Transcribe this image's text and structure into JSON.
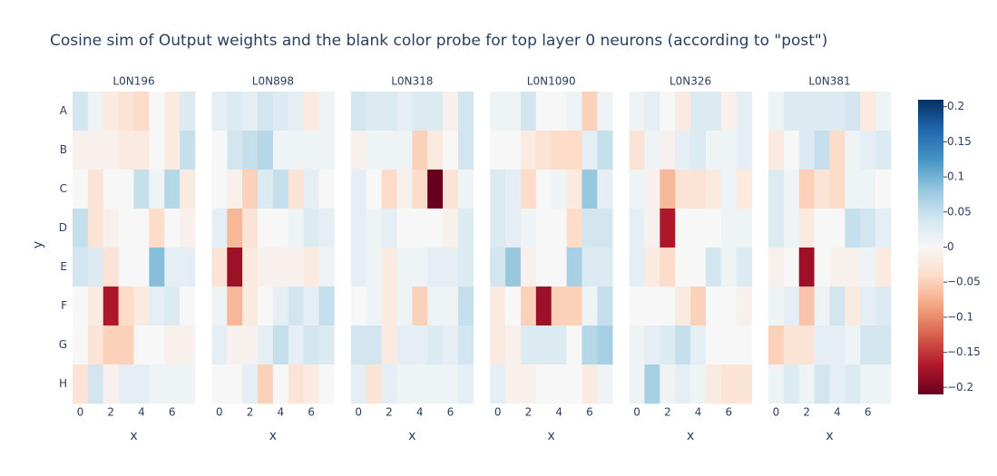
{
  "chart_data": {
    "type": "heatmap",
    "title": "Cosine sim of Output weights and the blank color probe for top layer 0 neurons (according to \"post\")",
    "xlabel": "x",
    "ylabel": "y",
    "x": [
      0,
      1,
      2,
      3,
      4,
      5,
      6,
      7
    ],
    "y": [
      "A",
      "B",
      "C",
      "D",
      "E",
      "F",
      "G",
      "H"
    ],
    "xlim": [
      -0.5,
      7.5
    ],
    "xticks": [
      0,
      2,
      4,
      6
    ],
    "zlim": [
      -0.21,
      0.21
    ],
    "colorscale": [
      "rgb(103,0,31)",
      "rgb(178,24,43)",
      "rgb(214,96,77)",
      "rgb(244,165,130)",
      "rgb(253,219,199)",
      "rgb(247,247,247)",
      "rgb(209,229,240)",
      "rgb(146,197,222)",
      "rgb(67,147,195)",
      "rgb(33,102,172)",
      "rgb(5,48,97)"
    ],
    "colorbar_ticks": [
      {
        "value": -0.2,
        "label": "−0.2"
      },
      {
        "value": -0.15,
        "label": "−0.15"
      },
      {
        "value": -0.1,
        "label": "−0.1"
      },
      {
        "value": -0.05,
        "label": "−0.05"
      },
      0,
      0.05,
      0.1,
      0.15,
      0.2
    ],
    "subplots": [
      {
        "title": "L0N196",
        "z": [
          [
            0.04,
            0.01,
            -0.02,
            -0.03,
            -0.04,
            0,
            -0.02,
            0.03
          ],
          [
            -0.01,
            -0.01,
            -0.01,
            -0.02,
            -0.02,
            0,
            -0.02,
            0.05
          ],
          [
            0,
            -0.03,
            0,
            0,
            0.05,
            0.01,
            0.06,
            -0.02
          ],
          [
            0.05,
            -0.03,
            -0.01,
            0,
            0,
            -0.04,
            0,
            -0.01
          ],
          [
            0.04,
            0.03,
            -0.03,
            0,
            0,
            0.09,
            0.02,
            0.02
          ],
          [
            0,
            -0.02,
            -0.17,
            -0.04,
            -0.02,
            0.02,
            0.03,
            0
          ],
          [
            0,
            -0.03,
            -0.05,
            -0.05,
            0,
            0,
            -0.01,
            -0.01
          ],
          [
            -0.03,
            0.04,
            -0.01,
            0.02,
            0.02,
            0.01,
            0.01,
            0.01
          ]
        ]
      },
      {
        "title": "L0N898",
        "z": [
          [
            0.02,
            0.03,
            0.02,
            0.04,
            0.03,
            0.02,
            -0.02,
            0.01
          ],
          [
            0,
            0.04,
            0.05,
            0.06,
            0.01,
            0.01,
            0.01,
            0.01
          ],
          [
            0,
            -0.01,
            -0.05,
            0.03,
            0.05,
            -0.03,
            0.02,
            0
          ],
          [
            0.02,
            -0.07,
            -0.03,
            0,
            0,
            0.01,
            0.03,
            0.02
          ],
          [
            -0.03,
            -0.18,
            -0.02,
            -0.01,
            -0.01,
            -0.01,
            -0.02,
            0.01
          ],
          [
            0.01,
            -0.07,
            -0.02,
            0,
            0.02,
            0.04,
            0.02,
            0.05
          ],
          [
            0.02,
            -0.01,
            -0.01,
            0.02,
            0.05,
            0.02,
            0.04,
            0.03
          ],
          [
            0,
            0,
            0.02,
            -0.05,
            0,
            -0.03,
            -0.02,
            0
          ]
        ]
      },
      {
        "title": "L0N318",
        "z": [
          [
            0.04,
            0.03,
            0.03,
            0.02,
            0.03,
            0.03,
            -0.01,
            0.04
          ],
          [
            -0.01,
            0.01,
            0.01,
            0.01,
            -0.05,
            -0.02,
            0,
            0.04
          ],
          [
            0.02,
            0,
            -0.04,
            -0.01,
            -0.04,
            -0.21,
            -0.03,
            0.01
          ],
          [
            0.02,
            0.01,
            0.02,
            0,
            0,
            0,
            -0.01,
            0.03
          ],
          [
            0.02,
            0.01,
            -0.02,
            0.01,
            0.01,
            0.02,
            0.02,
            0.03
          ],
          [
            0,
            0.01,
            -0.02,
            0.01,
            -0.05,
            0.01,
            0.01,
            0.05
          ],
          [
            0.04,
            0.04,
            -0.02,
            0.02,
            0.02,
            0.03,
            0.02,
            0.04
          ],
          [
            0.02,
            -0.03,
            0.02,
            0.01,
            0.01,
            0.01,
            0.01,
            0.02
          ]
        ]
      },
      {
        "title": "L0N1090",
        "z": [
          [
            0.01,
            0.01,
            0.04,
            0,
            0,
            0.01,
            -0.05,
            0.01
          ],
          [
            0,
            0,
            -0.02,
            -0.03,
            -0.04,
            -0.04,
            0.02,
            0.05
          ],
          [
            0.03,
            0.02,
            -0.04,
            0,
            0.01,
            -0.02,
            0.08,
            0.02
          ],
          [
            0.03,
            0.02,
            0.01,
            0,
            0,
            -0.04,
            0.04,
            0.04
          ],
          [
            0.04,
            0.08,
            -0.01,
            0,
            0,
            0.07,
            0.03,
            0.03
          ],
          [
            -0.02,
            0,
            -0.05,
            -0.18,
            -0.05,
            -0.05,
            0.01,
            0.05
          ],
          [
            -0.02,
            -0.01,
            0.03,
            0.03,
            0.03,
            0,
            0.06,
            0.07
          ],
          [
            0.02,
            -0.01,
            -0.01,
            0,
            0,
            0,
            -0.02,
            0.01
          ]
        ]
      },
      {
        "title": "L0N326",
        "z": [
          [
            0.01,
            0.02,
            0,
            -0.02,
            0.03,
            0.03,
            -0.01,
            0.02
          ],
          [
            -0.03,
            0.01,
            -0.01,
            0.02,
            0.03,
            0.01,
            0.01,
            0.02
          ],
          [
            0.01,
            -0.01,
            -0.07,
            -0.03,
            -0.03,
            -0.02,
            0.01,
            -0.02
          ],
          [
            0.02,
            -0.01,
            -0.17,
            0,
            0,
            0,
            0.01,
            0.01
          ],
          [
            0.02,
            -0.02,
            -0.04,
            0,
            0,
            0.04,
            0.01,
            0.03
          ],
          [
            0,
            0,
            0,
            -0.02,
            -0.05,
            0,
            0,
            -0.01
          ],
          [
            0.01,
            0.02,
            0.03,
            0.05,
            0.02,
            0,
            0,
            0
          ],
          [
            0.01,
            0.07,
            0.01,
            0.02,
            0.01,
            -0.02,
            -0.03,
            -0.03
          ]
        ]
      },
      {
        "title": "L0N381",
        "z": [
          [
            0.01,
            0.03,
            0.03,
            0.03,
            0.03,
            0.04,
            -0.02,
            0.01
          ],
          [
            -0.02,
            0,
            0.03,
            0.05,
            -0.04,
            0.01,
            0.02,
            0.03
          ],
          [
            0.03,
            0.01,
            -0.05,
            -0.03,
            -0.04,
            0.01,
            0.01,
            0
          ],
          [
            0.03,
            0.01,
            -0.02,
            0,
            0,
            0.05,
            0.04,
            0.02
          ],
          [
            -0.01,
            0,
            -0.18,
            0,
            -0.01,
            -0.01,
            0.01,
            -0.02
          ],
          [
            0.01,
            0.02,
            -0.06,
            0.01,
            0.04,
            -0.02,
            0.02,
            0.03
          ],
          [
            -0.05,
            -0.03,
            -0.03,
            0.02,
            0.02,
            0.01,
            0.04,
            0.04
          ],
          [
            0.01,
            0.03,
            0.01,
            0.04,
            0.02,
            0.03,
            0.01,
            0.01
          ]
        ]
      }
    ]
  }
}
